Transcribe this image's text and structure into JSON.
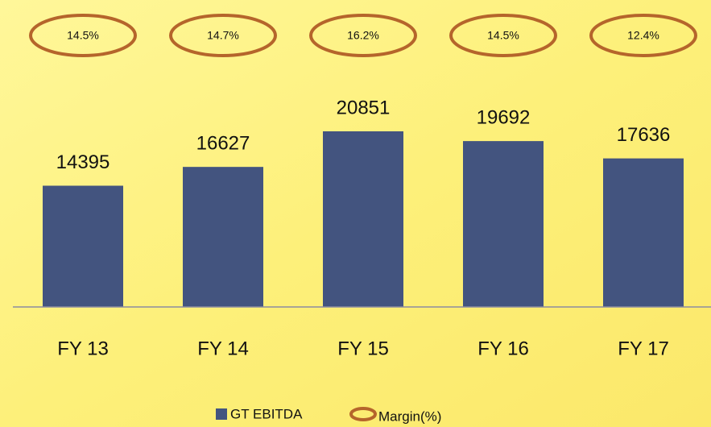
{
  "chart_data": {
    "type": "bar",
    "categories": [
      "FY 13",
      "FY 14",
      "FY 15",
      "FY 16",
      "FY 17"
    ],
    "series": [
      {
        "name": "GT EBITDA",
        "color": "#43547f",
        "values": [
          14395,
          16627,
          20851,
          19692,
          17636
        ]
      },
      {
        "name": "Margin(%)",
        "color": "#b5652b",
        "values": [
          14.5,
          14.7,
          16.2,
          14.5,
          12.4
        ],
        "value_labels": [
          "14.5%",
          "14.7%",
          "16.2%",
          "14.5%",
          "12.4%"
        ]
      }
    ]
  }
}
